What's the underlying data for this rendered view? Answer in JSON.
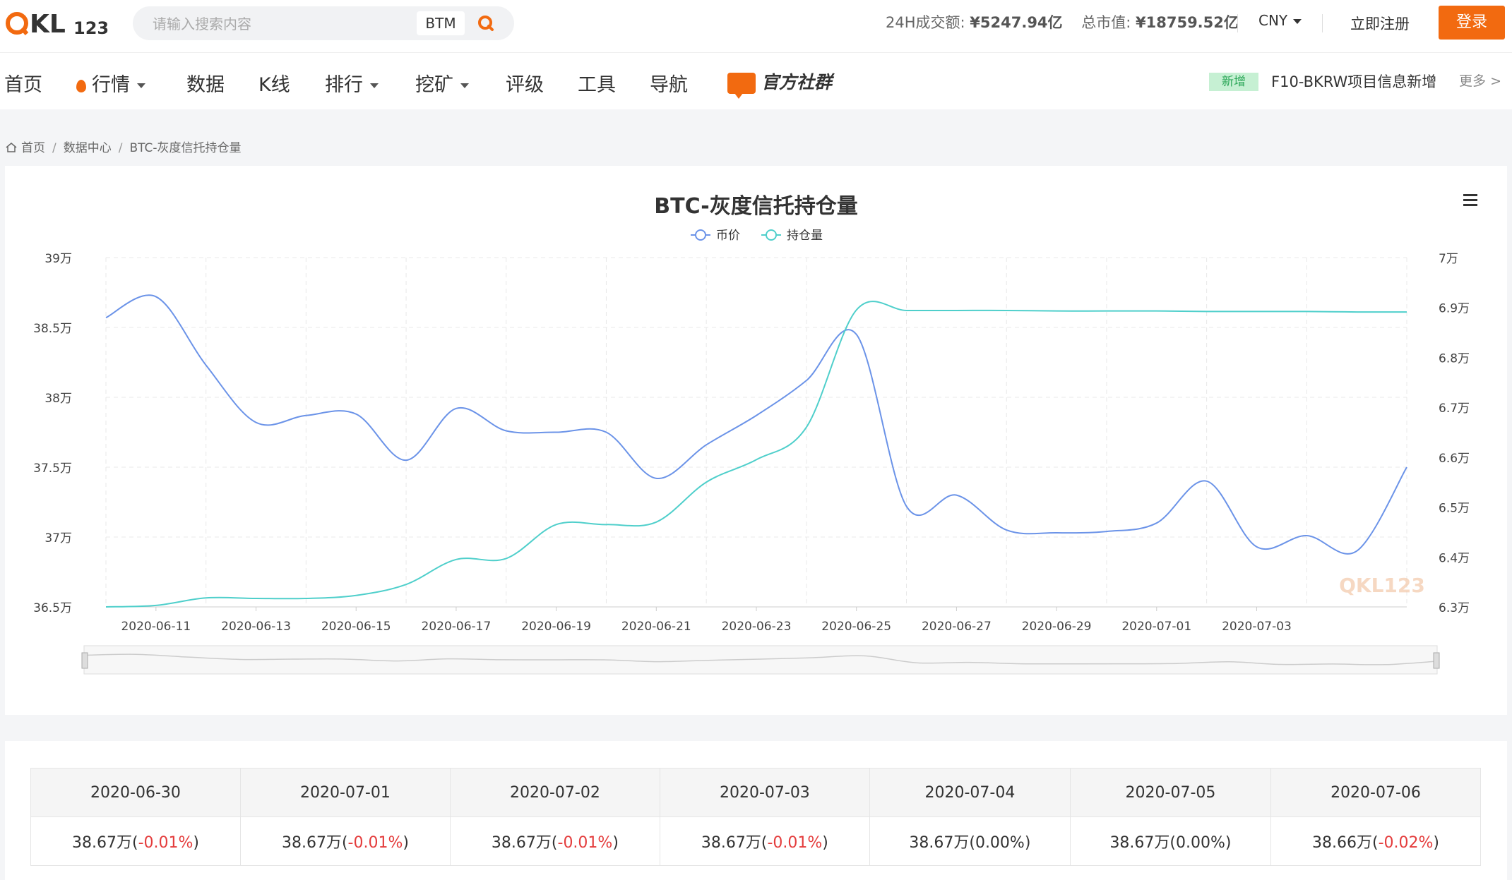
{
  "header": {
    "logo_text": "QKL123",
    "search_placeholder": "请输入搜索内容",
    "search_coin": "BTM",
    "volume_label": "24H成交额:",
    "volume_value": "¥5247.94亿",
    "marketcap_label": "总市值:",
    "marketcap_value": "¥18759.52亿",
    "currency": "CNY",
    "register_label": "立即注册",
    "login_label": "登录"
  },
  "nav": {
    "items": [
      "首页",
      "行情",
      "数据",
      "K线",
      "排行",
      "挖矿",
      "评级",
      "工具",
      "导航"
    ],
    "community_label": "官方社群",
    "new_badge": "新增",
    "news_text": "F10-BKRW项目信息新增",
    "more_label": "更多"
  },
  "breadcrumb": [
    "首页",
    "数据中心",
    "BTC-灰度信托持仓量"
  ],
  "chart_data": {
    "type": "line",
    "title": "BTC-灰度信托持仓量",
    "legend_position": "top-center",
    "watermark": "QKL123",
    "x": [
      "2020-06-10",
      "2020-06-11",
      "2020-06-12",
      "2020-06-13",
      "2020-06-14",
      "2020-06-15",
      "2020-06-16",
      "2020-06-17",
      "2020-06-18",
      "2020-06-19",
      "2020-06-20",
      "2020-06-21",
      "2020-06-22",
      "2020-06-23",
      "2020-06-24",
      "2020-06-25",
      "2020-06-26",
      "2020-06-27",
      "2020-06-28",
      "2020-06-29",
      "2020-06-30",
      "2020-07-01",
      "2020-07-02",
      "2020-07-03",
      "2020-07-04",
      "2020-07-05",
      "2020-07-06"
    ],
    "x_tick_labels": [
      "2020-06-11",
      "2020-06-13",
      "2020-06-15",
      "2020-06-17",
      "2020-06-19",
      "2020-06-21",
      "2020-06-23",
      "2020-06-25",
      "2020-06-27",
      "2020-06-29",
      "2020-07-01",
      "2020-07-03"
    ],
    "y_left": {
      "min": 36.5,
      "max": 39,
      "ticks": [
        "36.5万",
        "37万",
        "37.5万",
        "38万",
        "38.5万",
        "39万"
      ]
    },
    "y_right": {
      "min": 6.3,
      "max": 7,
      "ticks": [
        "6.3万",
        "6.4万",
        "6.5万",
        "6.6万",
        "6.7万",
        "6.8万",
        "6.9万",
        "7万"
      ]
    },
    "grid": true,
    "series": [
      {
        "name": "币价",
        "axis": "left",
        "color": "#6b93e8",
        "values": [
          38.57,
          38.72,
          38.23,
          37.82,
          37.87,
          37.88,
          37.55,
          37.92,
          37.76,
          37.75,
          37.75,
          37.42,
          37.66,
          37.87,
          38.12,
          38.45,
          37.22,
          37.3,
          37.05,
          37.03,
          37.04,
          37.1,
          37.4,
          36.93,
          37.01,
          36.9,
          37.5
        ]
      },
      {
        "name": "持仓量",
        "axis": "right",
        "color": "#4fcfcb",
        "values": [
          6.3,
          6.303,
          6.318,
          6.317,
          6.317,
          6.323,
          6.345,
          6.395,
          6.397,
          6.465,
          6.465,
          6.47,
          6.55,
          6.595,
          6.66,
          6.895,
          6.894,
          6.894,
          6.894,
          6.893,
          6.893,
          6.893,
          6.892,
          6.892,
          6.892,
          6.891,
          6.891
        ]
      }
    ]
  },
  "table": {
    "headers": [
      "2020-06-30",
      "2020-07-01",
      "2020-07-02",
      "2020-07-03",
      "2020-07-04",
      "2020-07-05",
      "2020-07-06"
    ],
    "values": [
      "38.67万",
      "38.67万",
      "38.67万",
      "38.67万",
      "38.67万",
      "38.67万",
      "38.66万"
    ],
    "changes": [
      "(-0.01%)",
      "(-0.01%)",
      "(-0.01%)",
      "(-0.01%)",
      "(0.00%)",
      "(0.00%)",
      "(-0.02%)"
    ]
  },
  "colors": {
    "brand": "#f26a10",
    "negative": "#e43c3c",
    "new_badge_bg": "#c6f0d3"
  }
}
